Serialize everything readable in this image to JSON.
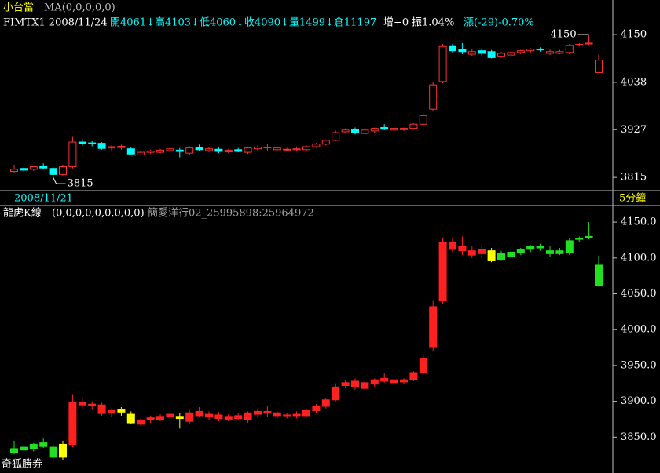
{
  "header": {
    "name": "小台當",
    "ma": "MA(0,0,0,0,0)",
    "quote": [
      "FIMTX1 2008/11/24",
      "開4061↓高4103↓低4060↓收4090↓量1499↓倉11197",
      "增+0",
      "振1.04%",
      "漲(-29)-0.70%"
    ],
    "date": "2008/11/21",
    "period": "5分鐘",
    "footer": "奇狐勝券"
  },
  "chart_data": [
    {
      "type": "candlestick",
      "up_color": "#ff3030",
      "down_color": "#00ffff",
      "open": [
        3829,
        3836,
        3834,
        3842,
        3836,
        3822,
        3840,
        3898,
        3896,
        3895,
        3884,
        3885,
        3882,
        3868,
        3874,
        3874,
        3878,
        3879,
        3872,
        3886,
        3878,
        3881,
        3875,
        3880,
        3874,
        3882,
        3884,
        3880,
        3880,
        3880,
        3880,
        3887,
        3893,
        3902,
        3922,
        3928,
        3918,
        3924,
        3932,
        3926,
        3927,
        3930,
        3940,
        3975,
        4040,
        4122,
        4116,
        4104,
        4112,
        4110,
        4098,
        4102,
        4108,
        4112,
        4116,
        4106,
        4106,
        4108,
        4126,
        4128,
        4061
      ],
      "high": [
        3845,
        3840,
        3842,
        3848,
        3842,
        3845,
        3910,
        3905,
        3900,
        3898,
        3890,
        3892,
        3886,
        3876,
        3880,
        3882,
        3884,
        3884,
        3888,
        3892,
        3886,
        3885,
        3882,
        3884,
        3886,
        3890,
        3894,
        3886,
        3884,
        3886,
        3890,
        3896,
        3904,
        3925,
        3930,
        3932,
        3930,
        3932,
        3940,
        3932,
        3932,
        3942,
        3965,
        4040,
        4128,
        4128,
        4130,
        4116,
        4118,
        4114,
        4110,
        4114,
        4114,
        4118,
        4120,
        4116,
        4114,
        4128,
        4130,
        4150,
        4103
      ],
      "low": [
        3826,
        3828,
        3830,
        3835,
        3815,
        3818,
        3836,
        3890,
        3888,
        3880,
        3878,
        3880,
        3868,
        3866,
        3870,
        3872,
        3872,
        3862,
        3868,
        3878,
        3874,
        3872,
        3872,
        3874,
        3870,
        3878,
        3878,
        3876,
        3876,
        3876,
        3878,
        3884,
        3890,
        3900,
        3918,
        3916,
        3916,
        3920,
        3926,
        3922,
        3924,
        3928,
        3938,
        3970,
        4036,
        4108,
        4104,
        4100,
        4100,
        4094,
        4096,
        4098,
        4104,
        4108,
        4110,
        4102,
        4104,
        4104,
        4122,
        4126,
        4060
      ],
      "close": [
        3834,
        3832,
        3840,
        3837,
        3822,
        3840,
        3898,
        3895,
        3894,
        3883,
        3887,
        3888,
        3870,
        3874,
        3877,
        3879,
        3882,
        3876,
        3884,
        3880,
        3882,
        3876,
        3879,
        3876,
        3884,
        3886,
        3886,
        3884,
        3881,
        3882,
        3887,
        3893,
        3902,
        3920,
        3926,
        3920,
        3926,
        3930,
        3928,
        3930,
        3930,
        3940,
        3960,
        4032,
        4122,
        4112,
        4110,
        4110,
        4106,
        4096,
        4106,
        4108,
        4112,
        4116,
        4114,
        4110,
        4110,
        4124,
        4127,
        4130,
        4090
      ],
      "ylim": [
        3784,
        4231
      ],
      "yticks": [
        3815,
        3927,
        4038,
        4150
      ],
      "annotations": [
        {
          "text": "3815",
          "index": 4,
          "value": 3815
        },
        {
          "text": "4150",
          "index": 59,
          "value": 4150
        }
      ]
    },
    {
      "type": "candlestick",
      "title": "龍虎K線",
      "params": "(0,0,0,0,0,0,0,0,0)",
      "subtitle": "簡愛洋行02_25995898:25964972",
      "colors": [
        "#20e020",
        "#20e020",
        "#20e020",
        "#20e020",
        "#20e020",
        "#ffff00",
        "#ff2020",
        "#ff2020",
        "#ff2020",
        "#ff2020",
        "#ff2020",
        "#ffff00",
        "#ffff00",
        "#ff2020",
        "#ff2020",
        "#ff2020",
        "#ff2020",
        "#ffff00",
        "#ff2020",
        "#ff2020",
        "#ff2020",
        "#ff2020",
        "#ff2020",
        "#ff2020",
        "#ff2020",
        "#ff2020",
        "#ff2020",
        "#ff2020",
        "#ff2020",
        "#ff2020",
        "#ff2020",
        "#ff2020",
        "#ff2020",
        "#ff2020",
        "#ff2020",
        "#ff2020",
        "#ff2020",
        "#ff2020",
        "#ff2020",
        "#ff2020",
        "#ff2020",
        "#ff2020",
        "#ff2020",
        "#ff2020",
        "#ff2020",
        "#ff2020",
        "#ff2020",
        "#ff2020",
        "#ff2020",
        "#ffff00",
        "#20e020",
        "#20e020",
        "#20e020",
        "#20e020",
        "#20e020",
        "#20e020",
        "#20e020",
        "#20e020",
        "#20e020",
        "#20e020",
        "#20e020"
      ],
      "open": [
        3829,
        3836,
        3834,
        3842,
        3836,
        3822,
        3840,
        3898,
        3896,
        3895,
        3884,
        3885,
        3882,
        3868,
        3874,
        3874,
        3878,
        3879,
        3872,
        3886,
        3878,
        3881,
        3875,
        3880,
        3874,
        3882,
        3884,
        3880,
        3880,
        3880,
        3880,
        3887,
        3893,
        3902,
        3922,
        3928,
        3918,
        3924,
        3932,
        3926,
        3927,
        3930,
        3940,
        3975,
        4040,
        4122,
        4116,
        4104,
        4112,
        4110,
        4098,
        4102,
        4108,
        4112,
        4116,
        4106,
        4106,
        4108,
        4126,
        4128,
        4061
      ],
      "high": [
        3845,
        3840,
        3842,
        3848,
        3842,
        3845,
        3910,
        3905,
        3900,
        3898,
        3890,
        3892,
        3886,
        3876,
        3880,
        3882,
        3884,
        3884,
        3888,
        3892,
        3886,
        3885,
        3882,
        3884,
        3886,
        3890,
        3894,
        3886,
        3884,
        3886,
        3890,
        3896,
        3904,
        3925,
        3930,
        3932,
        3930,
        3932,
        3940,
        3932,
        3932,
        3942,
        3965,
        4040,
        4128,
        4128,
        4130,
        4116,
        4118,
        4114,
        4110,
        4114,
        4114,
        4118,
        4120,
        4116,
        4114,
        4128,
        4130,
        4150,
        4103
      ],
      "low": [
        3826,
        3828,
        3830,
        3835,
        3815,
        3818,
        3836,
        3890,
        3888,
        3880,
        3878,
        3880,
        3868,
        3866,
        3870,
        3872,
        3872,
        3862,
        3868,
        3878,
        3874,
        3872,
        3872,
        3874,
        3870,
        3878,
        3878,
        3876,
        3876,
        3876,
        3878,
        3884,
        3890,
        3900,
        3918,
        3916,
        3916,
        3920,
        3926,
        3922,
        3924,
        3928,
        3938,
        3970,
        4036,
        4108,
        4104,
        4100,
        4100,
        4094,
        4096,
        4098,
        4104,
        4108,
        4110,
        4102,
        4104,
        4104,
        4122,
        4126,
        4060
      ],
      "close": [
        3834,
        3832,
        3840,
        3837,
        3822,
        3840,
        3898,
        3895,
        3894,
        3883,
        3887,
        3888,
        3870,
        3874,
        3877,
        3879,
        3882,
        3876,
        3884,
        3880,
        3882,
        3876,
        3879,
        3876,
        3884,
        3886,
        3886,
        3884,
        3881,
        3882,
        3887,
        3893,
        3902,
        3920,
        3926,
        3920,
        3926,
        3930,
        3928,
        3930,
        3930,
        3940,
        3960,
        4032,
        4122,
        4112,
        4110,
        4110,
        4106,
        4096,
        4106,
        4108,
        4112,
        4116,
        4114,
        4110,
        4110,
        4124,
        4127,
        4130,
        4090
      ],
      "ylim": [
        3800,
        4172
      ],
      "yticks": [
        {
          "value": 3850,
          "label": "3850.0"
        },
        {
          "value": 3900,
          "label": "3900.0"
        },
        {
          "value": 3950,
          "label": "3950.0"
        },
        {
          "value": 4000,
          "label": "4000.0"
        },
        {
          "value": 4050,
          "label": "4050.0"
        },
        {
          "value": 4100,
          "label": "4100.0"
        },
        {
          "value": 4150,
          "label": "4150.0"
        }
      ]
    }
  ]
}
